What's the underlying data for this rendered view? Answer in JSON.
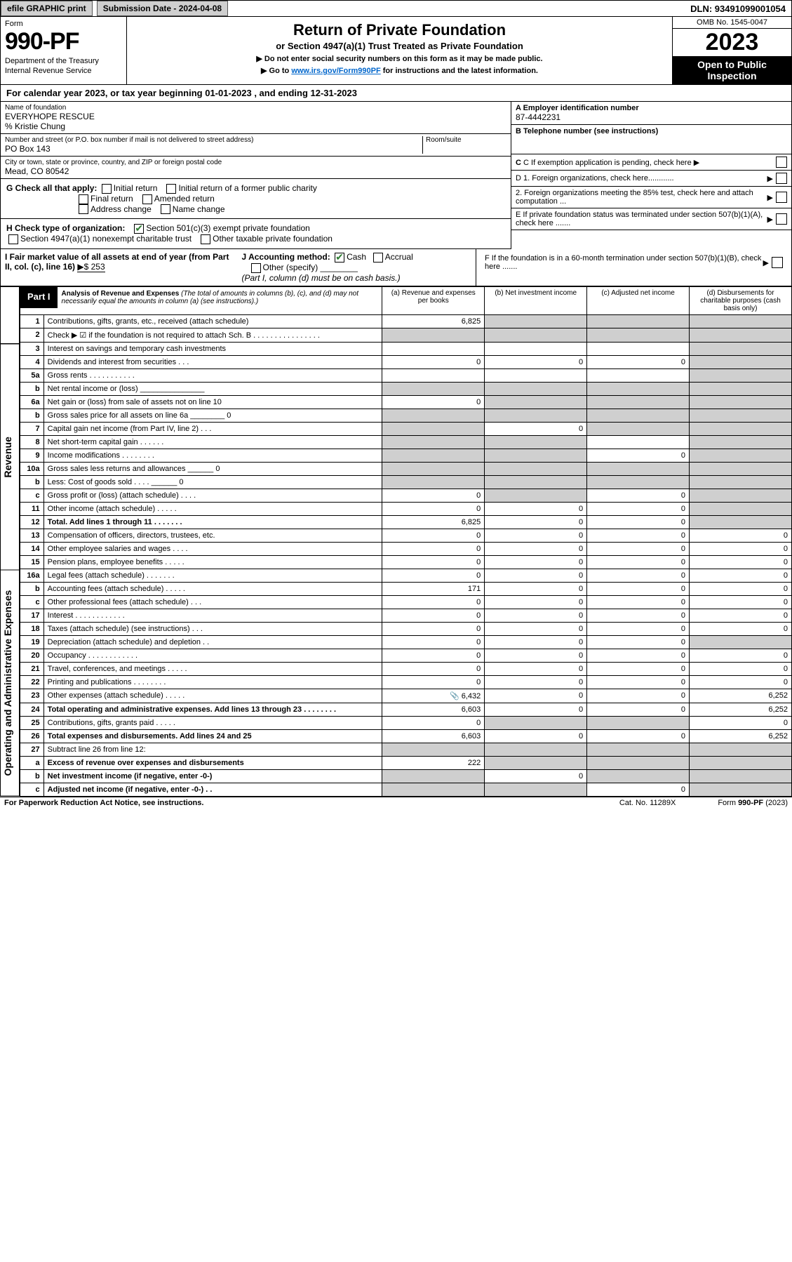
{
  "topbar": {
    "efile_btn": "efile GRAPHIC print",
    "submission_label": "Submission Date - 2024-04-08",
    "dln": "DLN: 93491099001054"
  },
  "header": {
    "form_word": "Form",
    "form_no": "990-PF",
    "dept1": "Department of the Treasury",
    "dept2": "Internal Revenue Service",
    "title": "Return of Private Foundation",
    "subtitle1": "or Section 4947(a)(1) Trust Treated as Private Foundation",
    "subtitle2": "▶ Do not enter social security numbers on this form as it may be made public.",
    "subtitle3_pre": "▶ Go to ",
    "subtitle3_link": "www.irs.gov/Form990PF",
    "subtitle3_post": " for instructions and the latest information.",
    "omb": "OMB No. 1545-0047",
    "year": "2023",
    "open": "Open to Public Inspection"
  },
  "calyear": "For calendar year 2023, or tax year beginning 01-01-2023           , and ending 12-31-2023",
  "info": {
    "name_label": "Name of foundation",
    "name_val": "EVERYHOPE RESCUE",
    "care_of": "% Kristie Chung",
    "street_label": "Number and street (or P.O. box number if mail is not delivered to street address)",
    "street_val": "PO Box 143",
    "room_label": "Room/suite",
    "city_label": "City or town, state or province, country, and ZIP or foreign postal code",
    "city_val": "Mead, CO  80542",
    "a_label": "A Employer identification number",
    "a_val": "87-4442231",
    "b_label": "B Telephone number (see instructions)",
    "c_label": "C If exemption application is pending, check here",
    "d1_label": "D 1. Foreign organizations, check here............",
    "d2_label": "2. Foreign organizations meeting the 85% test, check here and attach computation ...",
    "e_label": "E  If private foundation status was terminated under section 507(b)(1)(A), check here .......",
    "f_label": "F  If the foundation is in a 60-month termination under section 507(b)(1)(B), check here .......",
    "g_label": "G Check all that apply:",
    "g_opts": [
      "Initial return",
      "Initial return of a former public charity",
      "Final return",
      "Amended return",
      "Address change",
      "Name change"
    ],
    "h_label": "H Check type of organization:",
    "h_opts": [
      "Section 501(c)(3) exempt private foundation",
      "Section 4947(a)(1) nonexempt charitable trust",
      "Other taxable private foundation"
    ],
    "i_label": "I Fair market value of all assets at end of year (from Part II, col. (c), line 16)",
    "i_val": "▶$  253",
    "j_label": "J Accounting method:",
    "j_cash": "Cash",
    "j_accrual": "Accrual",
    "j_other": "Other (specify)",
    "j_note": "(Part I, column (d) must be on cash basis.)"
  },
  "part1": {
    "label": "Part I",
    "title": "Analysis of Revenue and Expenses",
    "title_note": "(The total of amounts in columns (b), (c), and (d) may not necessarily equal the amounts in column (a) (see instructions).)",
    "cols": {
      "a": "(a)  Revenue and expenses per books",
      "b": "(b)  Net investment income",
      "c": "(c)  Adjusted net income",
      "d": "(d)  Disbursements for charitable purposes (cash basis only)"
    }
  },
  "side_labels": {
    "revenue": "Revenue",
    "expenses": "Operating and Administrative Expenses"
  },
  "rows": [
    {
      "n": "1",
      "d": "",
      "a": "6,825",
      "b": "",
      "c": "",
      "sb": true,
      "sc": true,
      "sd": true
    },
    {
      "n": "2",
      "d": "",
      "a": "",
      "b": "",
      "c": "",
      "sa": true,
      "sb": true,
      "sc": true,
      "sd": true
    },
    {
      "n": "3",
      "d": "",
      "a": "",
      "b": "",
      "c": "",
      "sd": true
    },
    {
      "n": "4",
      "d": "",
      "a": "0",
      "b": "0",
      "c": "0",
      "sd": true
    },
    {
      "n": "5a",
      "d": "",
      "a": "",
      "b": "",
      "c": "",
      "sd": true
    },
    {
      "n": "b",
      "d": "",
      "a": "",
      "b": "",
      "c": "",
      "sa": true,
      "sb": true,
      "sc": true,
      "sd": true
    },
    {
      "n": "6a",
      "d": "",
      "a": "0",
      "b": "",
      "c": "",
      "sb": true,
      "sc": true,
      "sd": true
    },
    {
      "n": "b",
      "d": "",
      "a": "",
      "b": "",
      "c": "",
      "sa": true,
      "sb": true,
      "sc": true,
      "sd": true
    },
    {
      "n": "7",
      "d": "",
      "a": "",
      "b": "0",
      "c": "",
      "sa": true,
      "sc": true,
      "sd": true
    },
    {
      "n": "8",
      "d": "",
      "a": "",
      "b": "",
      "c": "",
      "sa": true,
      "sb": true,
      "sd": true
    },
    {
      "n": "9",
      "d": "",
      "a": "",
      "b": "",
      "c": "0",
      "sa": true,
      "sb": true,
      "sd": true
    },
    {
      "n": "10a",
      "d": "",
      "a": "",
      "b": "",
      "c": "",
      "sa": true,
      "sb": true,
      "sc": true,
      "sd": true
    },
    {
      "n": "b",
      "d": "",
      "a": "",
      "b": "",
      "c": "",
      "sa": true,
      "sb": true,
      "sc": true,
      "sd": true
    },
    {
      "n": "c",
      "d": "",
      "a": "0",
      "b": "",
      "c": "0",
      "sb": true,
      "sd": true
    },
    {
      "n": "11",
      "d": "",
      "a": "0",
      "b": "0",
      "c": "0",
      "sd": true
    },
    {
      "n": "12",
      "d": "",
      "a": "6,825",
      "b": "0",
      "c": "0",
      "bold": true,
      "sd": true
    },
    {
      "n": "13",
      "d": "0",
      "a": "0",
      "b": "0",
      "c": "0"
    },
    {
      "n": "14",
      "d": "0",
      "a": "0",
      "b": "0",
      "c": "0"
    },
    {
      "n": "15",
      "d": "0",
      "a": "0",
      "b": "0",
      "c": "0"
    },
    {
      "n": "16a",
      "d": "0",
      "a": "0",
      "b": "0",
      "c": "0"
    },
    {
      "n": "b",
      "d": "0",
      "a": "171",
      "b": "0",
      "c": "0"
    },
    {
      "n": "c",
      "d": "0",
      "a": "0",
      "b": "0",
      "c": "0"
    },
    {
      "n": "17",
      "d": "0",
      "a": "0",
      "b": "0",
      "c": "0"
    },
    {
      "n": "18",
      "d": "0",
      "a": "0",
      "b": "0",
      "c": "0"
    },
    {
      "n": "19",
      "d": "",
      "a": "0",
      "b": "0",
      "c": "0",
      "sd": true
    },
    {
      "n": "20",
      "d": "0",
      "a": "0",
      "b": "0",
      "c": "0"
    },
    {
      "n": "21",
      "d": "0",
      "a": "0",
      "b": "0",
      "c": "0"
    },
    {
      "n": "22",
      "d": "0",
      "a": "0",
      "b": "0",
      "c": "0"
    },
    {
      "n": "23",
      "d": "6,252",
      "a": "6,432",
      "b": "0",
      "c": "0",
      "icon": true
    },
    {
      "n": "24",
      "d": "6,252",
      "a": "6,603",
      "b": "0",
      "c": "0",
      "bold": true
    },
    {
      "n": "25",
      "d": "0",
      "a": "0",
      "b": "",
      "c": "",
      "sb": true,
      "sc": true
    },
    {
      "n": "26",
      "d": "6,252",
      "a": "6,603",
      "b": "0",
      "c": "0",
      "bold": true
    },
    {
      "n": "27",
      "d": "",
      "a": "",
      "b": "",
      "c": "",
      "sa": true,
      "sb": true,
      "sc": true,
      "sd": true
    },
    {
      "n": "a",
      "d": "",
      "a": "222",
      "b": "",
      "c": "",
      "bold": true,
      "sb": true,
      "sc": true,
      "sd": true
    },
    {
      "n": "b",
      "d": "",
      "a": "",
      "b": "0",
      "c": "",
      "bold": true,
      "sa": true,
      "sc": true,
      "sd": true
    },
    {
      "n": "c",
      "d": "",
      "a": "",
      "b": "",
      "c": "0",
      "bold": true,
      "sa": true,
      "sb": true,
      "sd": true
    }
  ],
  "footer": {
    "left": "For Paperwork Reduction Act Notice, see instructions.",
    "mid": "Cat. No. 11289X",
    "right": "Form 990-PF (2023)"
  }
}
